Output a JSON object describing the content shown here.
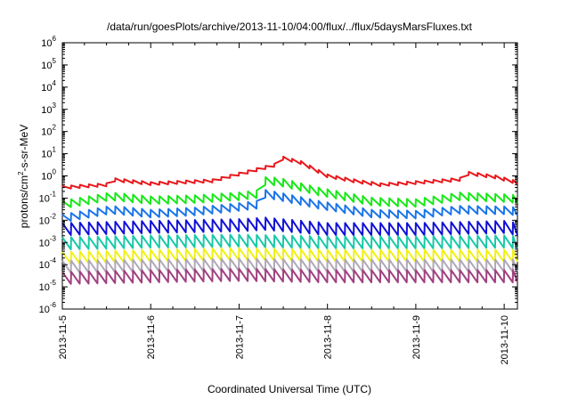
{
  "chart_data": {
    "type": "line",
    "title": "/data/run/goesPlots/archive/2013-11-10/04:00/flux/../flux/5daysMarsFluxes.txt",
    "xlabel": "Coordinated Universal Time (UTC)",
    "ylabel_main": "protons/cm",
    "ylabel_sup": "2",
    "ylabel_rest": "-s-sr-MeV",
    "y_scale": "log",
    "ylim_exp": [
      -6,
      6
    ],
    "xlim_days": [
      0,
      5.15
    ],
    "x_ticks": [
      {
        "day": 0,
        "label": "2013-11-5"
      },
      {
        "day": 1,
        "label": "2013-11-6"
      },
      {
        "day": 2,
        "label": "2013-11-7"
      },
      {
        "day": 3,
        "label": "2013-11-8"
      },
      {
        "day": 4,
        "label": "2013-11-9"
      },
      {
        "day": 5,
        "label": "2013-11-10"
      }
    ],
    "y_ticks": [
      {
        "exp": -6,
        "base": "10",
        "sup": "-6"
      },
      {
        "exp": -5,
        "base": "10",
        "sup": "-5"
      },
      {
        "exp": -4,
        "base": "10",
        "sup": "-4"
      },
      {
        "exp": -3,
        "base": "10",
        "sup": "-3"
      },
      {
        "exp": -2,
        "base": "10",
        "sup": "-2"
      },
      {
        "exp": -1,
        "base": "10",
        "sup": "-1"
      },
      {
        "exp": 0,
        "base": "10",
        "sup": "0"
      },
      {
        "exp": 1,
        "base": "10",
        "sup": "1"
      },
      {
        "exp": 2,
        "base": "10",
        "sup": "2"
      },
      {
        "exp": 3,
        "base": "10",
        "sup": "3"
      },
      {
        "exp": 4,
        "base": "10",
        "sup": "4"
      },
      {
        "exp": 5,
        "base": "10",
        "sup": "5"
      },
      {
        "exp": 6,
        "base": "10",
        "sup": "6"
      }
    ],
    "grid": false,
    "legend": "none",
    "series": [
      {
        "color": "#e8181c",
        "x": [
          0,
          0.5,
          0.55,
          1.0,
          1.7,
          2.0,
          2.4,
          2.45,
          2.7,
          3.0,
          3.3,
          3.6,
          4.0,
          4.3,
          4.5,
          4.6,
          4.9,
          5.15
        ],
        "y": [
          0.3,
          0.4,
          0.7,
          0.45,
          0.6,
          1.2,
          3.0,
          7.0,
          4.0,
          1.0,
          0.6,
          0.4,
          0.5,
          0.6,
          0.7,
          1.3,
          0.9,
          0.5
        ]
      },
      {
        "color": "#18e818",
        "x": [
          0,
          0.55,
          1.0,
          1.5,
          2.0,
          2.2,
          2.25,
          2.45,
          2.9,
          3.5,
          4.0,
          4.5,
          5.0,
          5.15
        ],
        "y": [
          0.05,
          0.12,
          0.08,
          0.09,
          0.12,
          0.15,
          0.6,
          0.55,
          0.2,
          0.07,
          0.06,
          0.12,
          0.1,
          0.09
        ]
      },
      {
        "color": "#1a74e8",
        "x": [
          0,
          0.55,
          1.0,
          1.5,
          2.0,
          2.2,
          2.25,
          2.45,
          2.9,
          3.5,
          4.0,
          4.5,
          5.0,
          5.15
        ],
        "y": [
          0.012,
          0.03,
          0.02,
          0.025,
          0.04,
          0.05,
          0.17,
          0.12,
          0.05,
          0.02,
          0.018,
          0.03,
          0.028,
          0.025
        ]
      },
      {
        "color": "#1010d8",
        "x": [
          0,
          1.0,
          2.0,
          2.3,
          3.0,
          4.0,
          5.0,
          5.15
        ],
        "y": [
          0.004,
          0.005,
          0.006,
          0.007,
          0.004,
          0.004,
          0.005,
          0.004
        ]
      },
      {
        "color": "#18c8a8",
        "x": [
          0,
          1.0,
          2.0,
          3.0,
          4.0,
          5.0,
          5.15
        ],
        "y": [
          0.0009,
          0.0011,
          0.0012,
          0.001,
          0.001,
          0.0011,
          0.001
        ]
      },
      {
        "color": "#f0f018",
        "x": [
          0,
          1.0,
          2.0,
          3.0,
          4.0,
          5.0,
          5.15
        ],
        "y": [
          0.0002,
          0.00025,
          0.0003,
          0.00025,
          0.00025,
          0.00025,
          0.00025
        ]
      },
      {
        "color": "#b0a8b8",
        "x": [
          0,
          1.0,
          2.0,
          3.0,
          4.0,
          5.0,
          5.15
        ],
        "y": [
          8e-05,
          9e-05,
          0.0001,
          9e-05,
          9e-05,
          9e-05,
          9e-05
        ]
      },
      {
        "color": "#a04080",
        "x": [
          0,
          1.0,
          2.0,
          3.0,
          4.0,
          5.0,
          5.15
        ],
        "y": [
          2.5e-05,
          3e-05,
          3.5e-05,
          3e-05,
          3e-05,
          3e-05,
          3e-05
        ]
      }
    ]
  }
}
